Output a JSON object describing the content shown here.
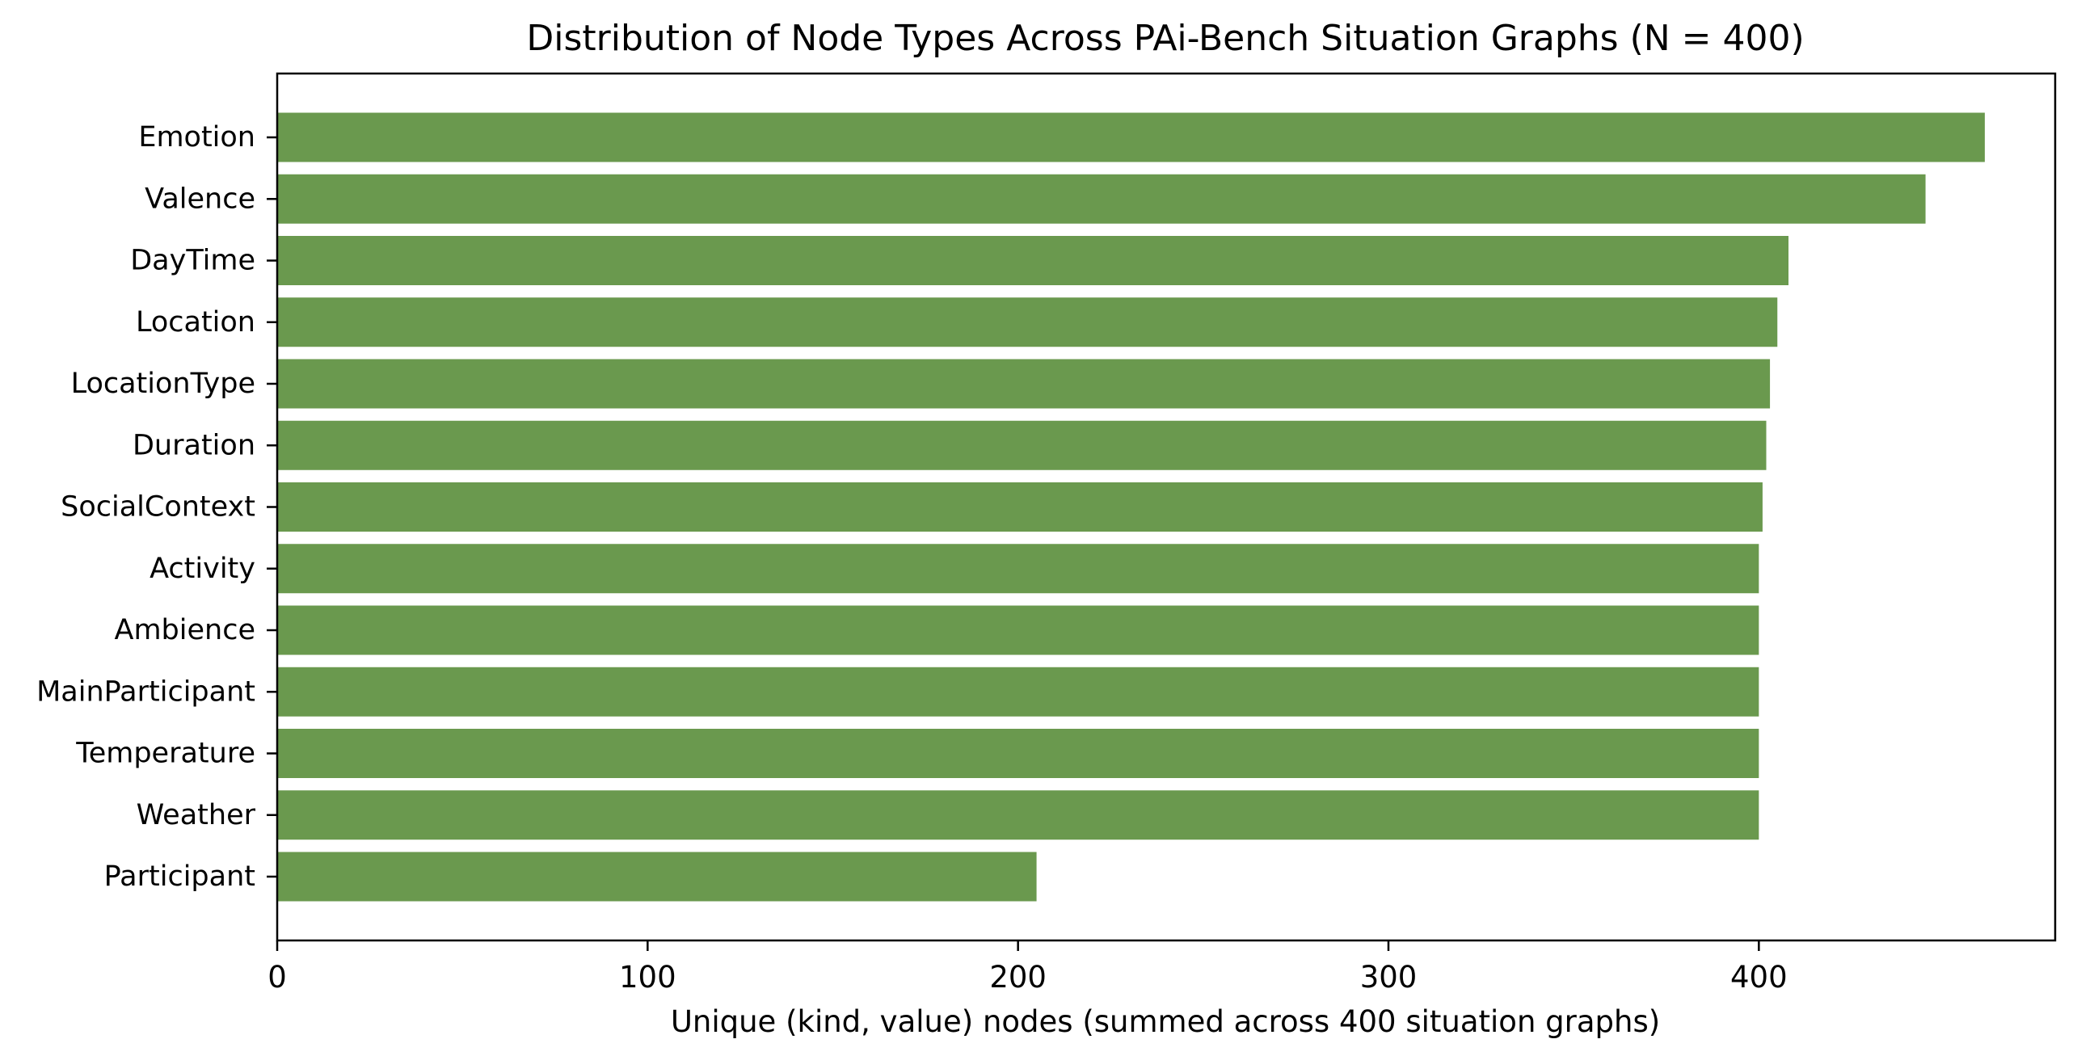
{
  "chart_data": {
    "type": "bar",
    "orientation": "horizontal",
    "title": "Distribution of Node Types Across PAi-Bench Situation Graphs (N = 400)",
    "xlabel": "Unique (kind, value) nodes (summed across 400 situation graphs)",
    "ylabel": "",
    "categories": [
      "Emotion",
      "Valence",
      "DayTime",
      "Location",
      "LocationType",
      "Duration",
      "SocialContext",
      "Activity",
      "Ambience",
      "MainParticipant",
      "Temperature",
      "Weather",
      "Participant"
    ],
    "values": [
      461,
      445,
      408,
      405,
      403,
      402,
      401,
      400,
      400,
      400,
      400,
      400,
      205
    ],
    "xlim": [
      0,
      480
    ],
    "xticks": [
      0,
      100,
      200,
      300,
      400
    ],
    "grid": false,
    "legend": "none",
    "bar_color": "#6a994e",
    "axis_color": "#000000"
  }
}
